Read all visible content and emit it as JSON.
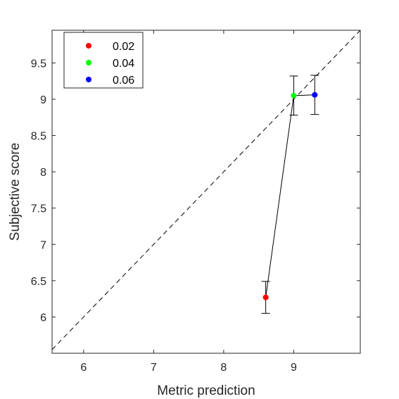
{
  "chart_data": {
    "type": "scatter",
    "title": "",
    "xlabel": "Metric prediction",
    "ylabel": "Subjective score",
    "xlim": [
      5.55,
      9.95
    ],
    "ylim": [
      5.5,
      9.95
    ],
    "xticks": [
      6,
      7,
      8,
      9
    ],
    "yticks": [
      6,
      6.5,
      7,
      7.5,
      8,
      8.5,
      9,
      9.5
    ],
    "x_tick_labels": [
      "6",
      "7",
      "8",
      "9"
    ],
    "y_tick_labels": [
      "6",
      "6.5",
      "7",
      "7.5",
      "8",
      "8.5",
      "9",
      "9.5"
    ],
    "grid": false,
    "legend_position": "top-left",
    "identity_line": true,
    "connect_points": true,
    "points": [
      {
        "label": "0.02",
        "x": 8.6,
        "y": 6.27,
        "err_low": 6.05,
        "err_high": 6.49,
        "color": "#ff0000"
      },
      {
        "label": "0.04",
        "x": 9.0,
        "y": 9.05,
        "err_low": 8.78,
        "err_high": 9.32,
        "color": "#00ff00"
      },
      {
        "label": "0.06",
        "x": 9.3,
        "y": 9.06,
        "err_low": 8.79,
        "err_high": 9.33,
        "color": "#0000ff"
      }
    ]
  }
}
